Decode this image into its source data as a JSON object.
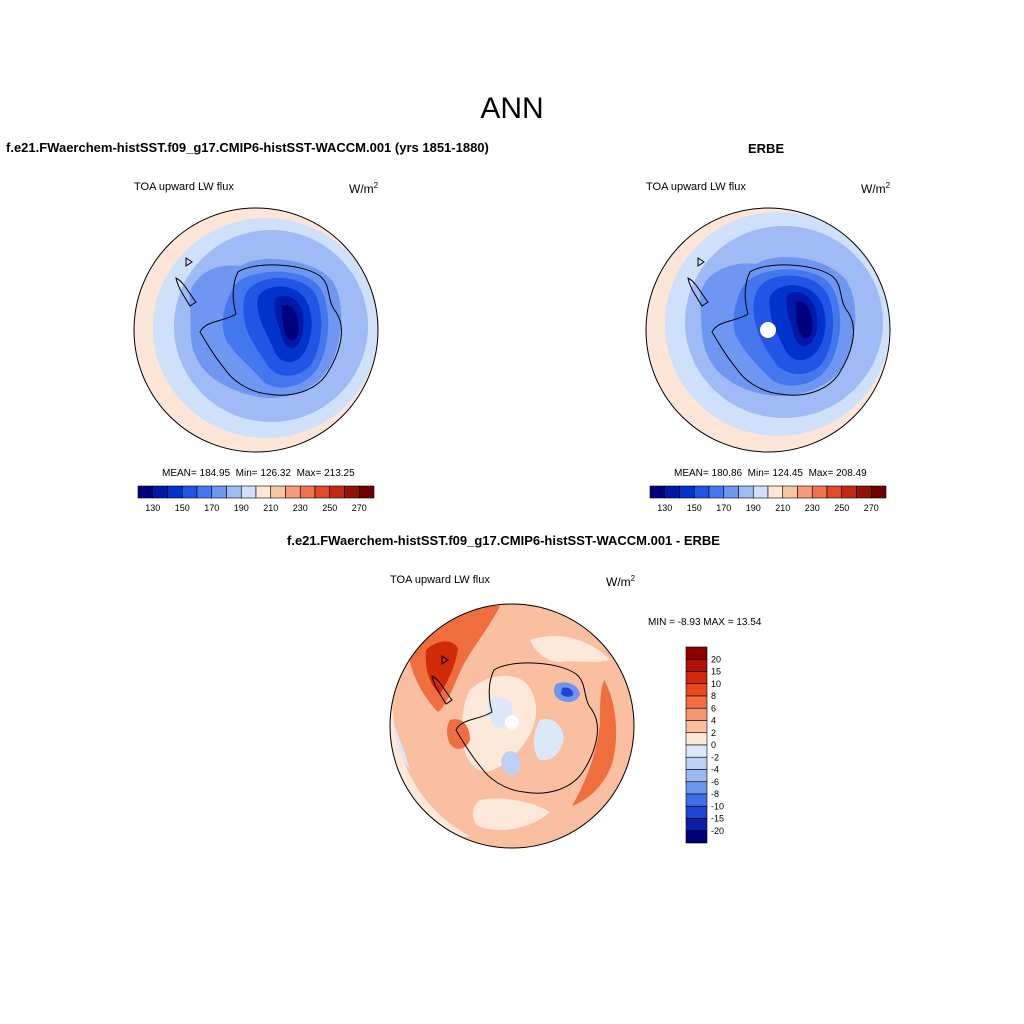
{
  "figure": {
    "title": "ANN"
  },
  "chart_data": [
    {
      "type": "heatmap",
      "projection": "south-polar-stereographic",
      "title": "f.e21.FWaerchem-histSST.f09_g17.CMIP6-histSST-WACCM.001 (yrs 1851-1880)",
      "left_label": "TOA upward LW flux",
      "units": "W/m",
      "units_exp": "2",
      "stats": {
        "mean_label": "MEAN= 184.95",
        "min_label": "Min= 126.32",
        "max_label": "Max= 213.25"
      },
      "mean": 184.95,
      "min": 126.32,
      "max": 213.25,
      "colorbar": {
        "orientation": "horizontal",
        "levels": [
          130,
          140,
          150,
          160,
          170,
          180,
          190,
          200,
          210,
          220,
          230,
          240,
          250,
          260,
          270
        ],
        "tick_labels": [
          "130",
          "150",
          "170",
          "190",
          "210",
          "230",
          "250",
          "270"
        ],
        "colors": [
          "#00007f",
          "#0018a8",
          "#0033cc",
          "#2255e5",
          "#4477ee",
          "#6f97f2",
          "#9fbaf5",
          "#cfe0fa",
          "#fde6d8",
          "#f8c4a8",
          "#f39d7a",
          "#ee7350",
          "#e04a25",
          "#c02a10",
          "#8f1408",
          "#6e0000"
        ]
      }
    },
    {
      "type": "heatmap",
      "projection": "south-polar-stereographic",
      "title": "ERBE",
      "left_label": "TOA upward LW flux",
      "units": "W/m",
      "units_exp": "2",
      "stats": {
        "mean_label": "MEAN= 180.86",
        "min_label": "Min= 124.45",
        "max_label": "Max= 208.49"
      },
      "mean": 180.86,
      "min": 124.45,
      "max": 208.49,
      "colorbar": {
        "orientation": "horizontal",
        "levels": [
          130,
          140,
          150,
          160,
          170,
          180,
          190,
          200,
          210,
          220,
          230,
          240,
          250,
          260,
          270
        ],
        "tick_labels": [
          "130",
          "150",
          "170",
          "190",
          "210",
          "230",
          "250",
          "270"
        ],
        "colors": [
          "#00007f",
          "#0018a8",
          "#0033cc",
          "#2255e5",
          "#4477ee",
          "#6f97f2",
          "#9fbaf5",
          "#cfe0fa",
          "#fde6d8",
          "#f8c4a8",
          "#f39d7a",
          "#ee7350",
          "#e04a25",
          "#c02a10",
          "#8f1408",
          "#6e0000"
        ]
      }
    },
    {
      "type": "heatmap",
      "projection": "south-polar-stereographic",
      "title": "f.e21.FWaerchem-histSST.f09_g17.CMIP6-histSST-WACCM.001 - ERBE",
      "left_label": "TOA upward LW flux",
      "units": "W/m",
      "units_exp": "2",
      "stats_label": "MIN =  -8.93 MAX =  13.54",
      "min": -8.93,
      "max": 13.54,
      "colorbar": {
        "orientation": "vertical",
        "levels": [
          20,
          15,
          10,
          8,
          6,
          4,
          2,
          0,
          -2,
          -4,
          -6,
          -8,
          -10,
          -15,
          -20
        ],
        "tick_labels": [
          "20",
          "15",
          "10",
          "8",
          "6",
          "4",
          "2",
          "0",
          "-2",
          "-4",
          "-6",
          "-8",
          "-10",
          "-15",
          "-20"
        ],
        "colors": [
          "#8b0000",
          "#b01005",
          "#d02a0a",
          "#e84a1e",
          "#f06e3e",
          "#f59670",
          "#f9bfa0",
          "#fde8da",
          "#dce8f8",
          "#bcd1f5",
          "#9ab8f2",
          "#6c95ee",
          "#3f6fe8",
          "#1e45d6",
          "#0a1fa8",
          "#00007f"
        ]
      }
    }
  ]
}
